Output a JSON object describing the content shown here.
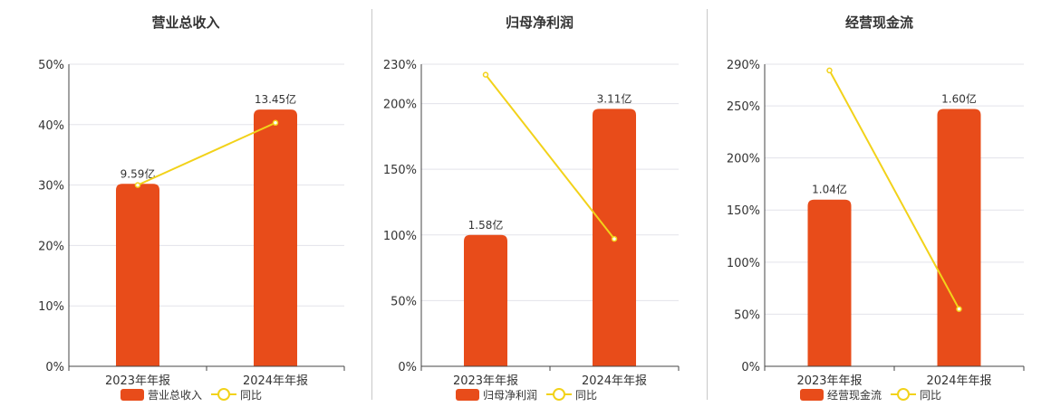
{
  "colors": {
    "bar": "#e84c1a",
    "line": "#f2d21a"
  },
  "panels": [
    {
      "title": "营业总收入",
      "legend_bar": "营业总收入",
      "legend_line": "同比"
    },
    {
      "title": "归母净利润",
      "legend_bar": "归母净利润",
      "legend_line": "同比"
    },
    {
      "title": "经营现金流",
      "legend_bar": "经营现金流",
      "legend_line": "同比"
    }
  ],
  "chart_data": [
    {
      "type": "bar",
      "title": "营业总收入",
      "categories": [
        "2023年年报",
        "2024年年报"
      ],
      "ylim": [
        0,
        50
      ],
      "yticks": [
        "0%",
        "10%",
        "20%",
        "30%",
        "40%",
        "50%"
      ],
      "yticks_values": [
        0,
        10,
        20,
        30,
        40,
        50
      ],
      "grid": true,
      "legend": "bottom",
      "series": [
        {
          "name": "营业总收入",
          "type": "bar",
          "values": [
            30.2,
            42.5
          ],
          "labels": [
            "9.59亿",
            "13.45亿"
          ]
        },
        {
          "name": "同比",
          "type": "line",
          "values": [
            30.0,
            40.3
          ]
        }
      ]
    },
    {
      "type": "bar",
      "title": "归母净利润",
      "categories": [
        "2023年年报",
        "2024年年报"
      ],
      "ylim": [
        0,
        230
      ],
      "yticks": [
        "0%",
        "50%",
        "100%",
        "150%",
        "200%",
        "230%"
      ],
      "yticks_values": [
        0,
        50,
        100,
        150,
        200,
        230
      ],
      "grid": true,
      "legend": "bottom",
      "series": [
        {
          "name": "归母净利润",
          "type": "bar",
          "values": [
            100,
            196
          ],
          "labels": [
            "1.58亿",
            "3.11亿"
          ]
        },
        {
          "name": "同比",
          "type": "line",
          "values": [
            222,
            97
          ]
        }
      ]
    },
    {
      "type": "bar",
      "title": "经营现金流",
      "categories": [
        "2023年年报",
        "2024年年报"
      ],
      "ylim": [
        0,
        290
      ],
      "yticks": [
        "0%",
        "50%",
        "100%",
        "150%",
        "200%",
        "250%",
        "290%"
      ],
      "yticks_values": [
        0,
        50,
        100,
        150,
        200,
        250,
        290
      ],
      "grid": true,
      "legend": "bottom",
      "series": [
        {
          "name": "经营现金流",
          "type": "bar",
          "values": [
            160,
            247
          ],
          "labels": [
            "1.04亿",
            "1.60亿"
          ]
        },
        {
          "name": "同比",
          "type": "line",
          "values": [
            284,
            55
          ]
        }
      ]
    }
  ]
}
